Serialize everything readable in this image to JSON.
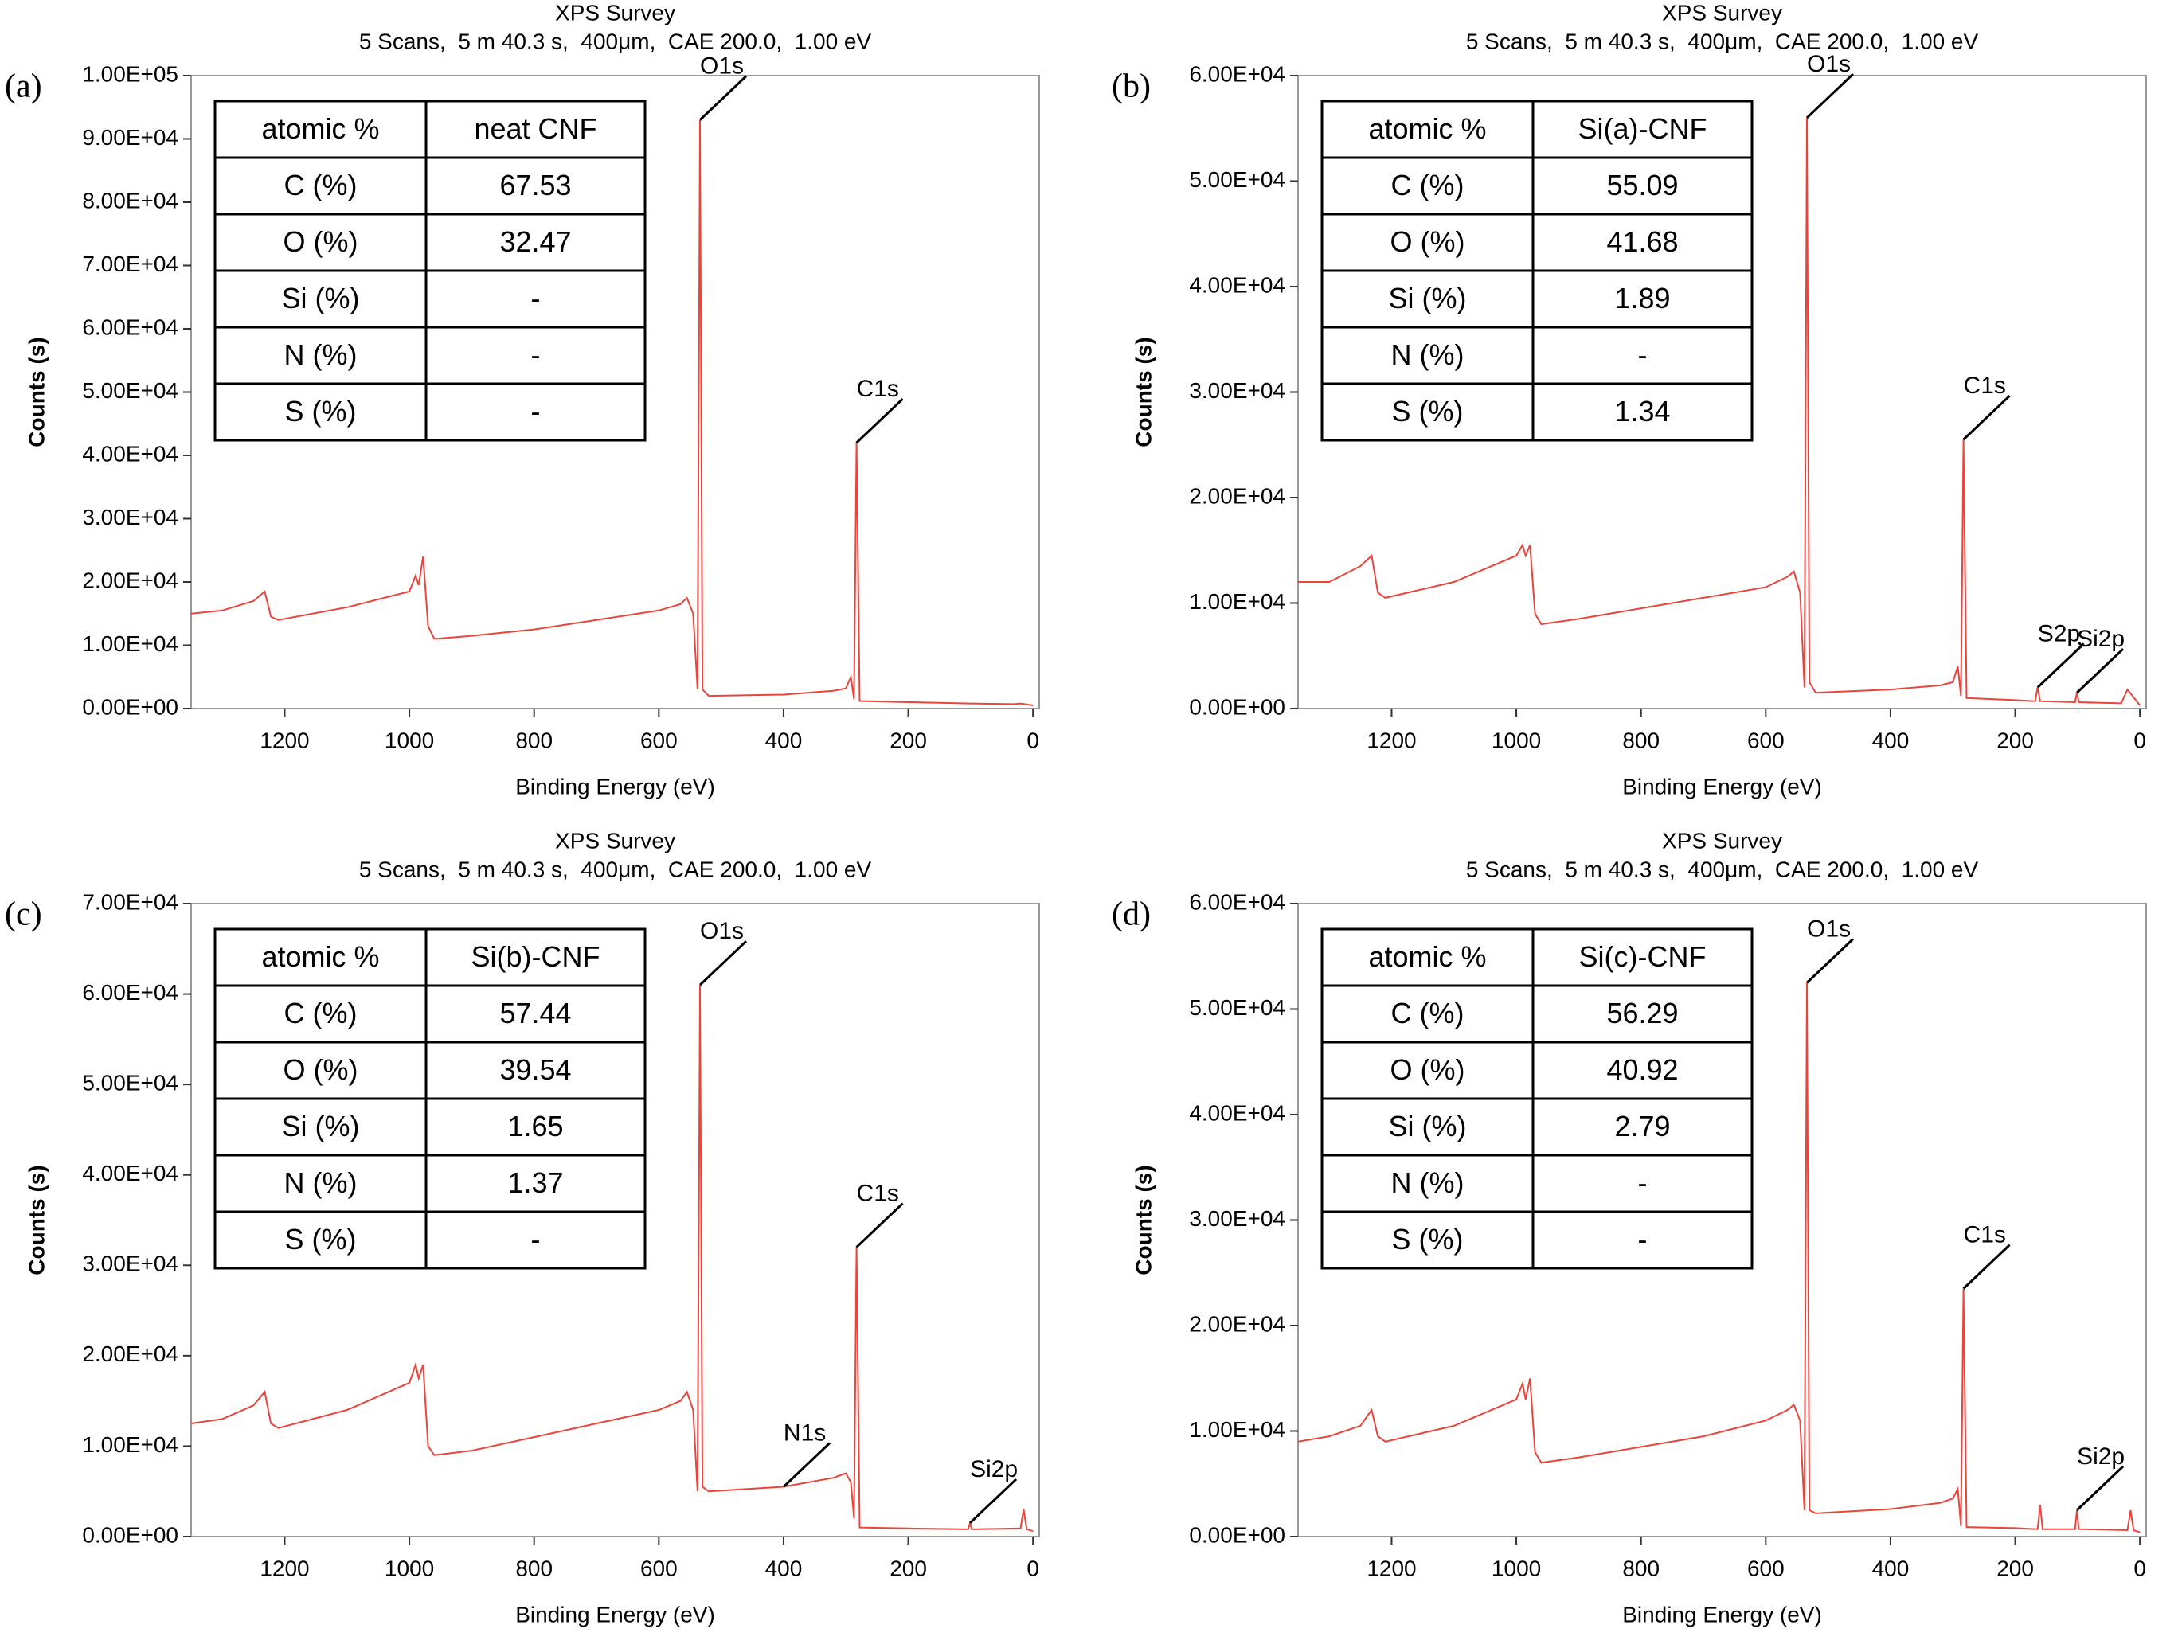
{
  "chart_data": [
    {
      "type": "line",
      "panel": "(a)",
      "title": "XPS Survey",
      "subtitle": "5 Scans,  5 m 40.3 s,  400μm,  CAE 200.0,  1.00 eV",
      "x_label": "Binding Energy (eV)",
      "y_label": "Counts (s)",
      "xlim": [
        1350,
        -10
      ],
      "ylim": [
        0,
        100000
      ],
      "xticks": [
        1200,
        1000,
        800,
        600,
        400,
        200,
        0
      ],
      "yticks": [
        {
          "value": 0,
          "label": "0.00E+00"
        },
        {
          "value": 10000,
          "label": "1.00E+04"
        },
        {
          "value": 20000,
          "label": "2.00E+04"
        },
        {
          "value": 30000,
          "label": "3.00E+04"
        },
        {
          "value": 40000,
          "label": "4.00E+04"
        },
        {
          "value": 50000,
          "label": "5.00E+04"
        },
        {
          "value": 60000,
          "label": "6.00E+04"
        },
        {
          "value": 70000,
          "label": "7.00E+04"
        },
        {
          "value": 80000,
          "label": "8.00E+04"
        },
        {
          "value": 90000,
          "label": "9.00E+04"
        },
        {
          "value": 100000,
          "label": "1.00E+05"
        }
      ],
      "x": [
        1350,
        1300,
        1250,
        1232,
        1222,
        1210,
        1100,
        1000,
        990,
        985,
        978,
        970,
        960,
        900,
        800,
        700,
        600,
        565,
        555,
        545,
        538,
        534,
        530,
        520,
        400,
        320,
        300,
        292,
        287,
        283,
        278,
        200,
        100,
        30,
        20,
        0
      ],
      "series": [
        {
          "color": "#e8453c",
          "values": [
            15000,
            15500,
            17000,
            18500,
            14500,
            14000,
            16000,
            18500,
            21000,
            19500,
            24000,
            13000,
            11000,
            11500,
            12500,
            14000,
            15500,
            16500,
            17500,
            15000,
            3000,
            93000,
            3000,
            2000,
            2200,
            2800,
            3200,
            5000,
            1500,
            42000,
            1200,
            1000,
            800,
            700,
            800,
            500
          ]
        }
      ],
      "annotations": [
        {
          "text": "O1s",
          "x": 534,
          "y": 93000
        },
        {
          "text": "C1s",
          "x": 283,
          "y": 42000
        }
      ],
      "table": {
        "header": [
          "atomic %",
          "neat CNF"
        ],
        "rows": [
          [
            "C (%)",
            "67.53"
          ],
          [
            "O (%)",
            "32.47"
          ],
          [
            "Si (%)",
            "-"
          ],
          [
            "N (%)",
            "-"
          ],
          [
            "S (%)",
            "-"
          ]
        ]
      }
    },
    {
      "type": "line",
      "panel": "(b)",
      "title": "XPS Survey",
      "subtitle": "5 Scans,  5 m 40.3 s,  400μm,  CAE 200.0,  1.00 eV",
      "x_label": "Binding Energy (eV)",
      "y_label": "Counts (s)",
      "xlim": [
        1350,
        -10
      ],
      "ylim": [
        0,
        60000
      ],
      "xticks": [
        1200,
        1000,
        800,
        600,
        400,
        200,
        0
      ],
      "yticks": [
        {
          "value": 0,
          "label": "0.00E+00"
        },
        {
          "value": 10000,
          "label": "1.00E+04"
        },
        {
          "value": 20000,
          "label": "2.00E+04"
        },
        {
          "value": 30000,
          "label": "3.00E+04"
        },
        {
          "value": 40000,
          "label": "4.00E+04"
        },
        {
          "value": 50000,
          "label": "5.00E+04"
        },
        {
          "value": 60000,
          "label": "6.00E+04"
        }
      ],
      "x": [
        1350,
        1300,
        1250,
        1232,
        1222,
        1210,
        1100,
        1000,
        990,
        985,
        978,
        970,
        960,
        900,
        800,
        700,
        600,
        565,
        555,
        545,
        538,
        534,
        530,
        520,
        400,
        320,
        300,
        292,
        287,
        283,
        278,
        200,
        168,
        164,
        160,
        104,
        101,
        98,
        30,
        20,
        0
      ],
      "series": [
        {
          "color": "#e8453c",
          "values": [
            12000,
            12000,
            13500,
            14500,
            11000,
            10500,
            12000,
            14500,
            15500,
            14500,
            15500,
            9000,
            8000,
            8500,
            9500,
            10500,
            11500,
            12500,
            13000,
            11000,
            2000,
            56000,
            2500,
            1500,
            1800,
            2200,
            2500,
            4000,
            1200,
            25500,
            1000,
            800,
            700,
            2000,
            700,
            600,
            1500,
            600,
            500,
            1800,
            300
          ]
        }
      ],
      "annotations": [
        {
          "text": "O1s",
          "x": 534,
          "y": 56000
        },
        {
          "text": "C1s",
          "x": 283,
          "y": 25500
        },
        {
          "text": "S2p",
          "x": 164,
          "y": 2000
        },
        {
          "text": "Si2p",
          "x": 101,
          "y": 1500
        }
      ],
      "table": {
        "header": [
          "atomic %",
          "Si(a)-CNF"
        ],
        "rows": [
          [
            "C (%)",
            "55.09"
          ],
          [
            "O (%)",
            "41.68"
          ],
          [
            "Si (%)",
            "1.89"
          ],
          [
            "N (%)",
            "-"
          ],
          [
            "S (%)",
            "1.34"
          ]
        ]
      }
    },
    {
      "type": "line",
      "panel": "(c)",
      "title": "XPS Survey",
      "subtitle": "5 Scans,  5 m 40.3 s,  400μm,  CAE 200.0,  1.00 eV",
      "x_label": "Binding Energy (eV)",
      "y_label": "Counts (s)",
      "xlim": [
        1350,
        -10
      ],
      "ylim": [
        0,
        70000
      ],
      "xticks": [
        1200,
        1000,
        800,
        600,
        400,
        200,
        0
      ],
      "yticks": [
        {
          "value": 0,
          "label": "0.00E+00"
        },
        {
          "value": 10000,
          "label": "1.00E+04"
        },
        {
          "value": 20000,
          "label": "2.00E+04"
        },
        {
          "value": 30000,
          "label": "3.00E+04"
        },
        {
          "value": 40000,
          "label": "4.00E+04"
        },
        {
          "value": 50000,
          "label": "5.00E+04"
        },
        {
          "value": 60000,
          "label": "6.00E+04"
        },
        {
          "value": 70000,
          "label": "7.00E+04"
        }
      ],
      "x": [
        1350,
        1300,
        1250,
        1232,
        1222,
        1210,
        1100,
        1000,
        990,
        985,
        978,
        970,
        960,
        900,
        800,
        700,
        600,
        565,
        555,
        545,
        538,
        534,
        530,
        520,
        400,
        320,
        300,
        292,
        287,
        283,
        278,
        200,
        104,
        101,
        98,
        20,
        15,
        10,
        0
      ],
      "series": [
        {
          "color": "#e8453c",
          "values": [
            12500,
            13000,
            14500,
            16000,
            12500,
            12000,
            14000,
            17000,
            19000,
            17500,
            19000,
            10000,
            9000,
            9500,
            11000,
            12500,
            14000,
            15000,
            16000,
            14000,
            5000,
            61000,
            5500,
            5000,
            5500,
            6500,
            7000,
            6000,
            2000,
            32000,
            1000,
            900,
            800,
            1500,
            800,
            900,
            3000,
            800,
            600
          ]
        }
      ],
      "annotations": [
        {
          "text": "O1s",
          "x": 534,
          "y": 61000
        },
        {
          "text": "C1s",
          "x": 283,
          "y": 32000
        },
        {
          "text": "N1s",
          "x": 400,
          "y": 5500
        },
        {
          "text": "Si2p",
          "x": 101,
          "y": 1500
        }
      ],
      "table": {
        "header": [
          "atomic %",
          "Si(b)-CNF"
        ],
        "rows": [
          [
            "C (%)",
            "57.44"
          ],
          [
            "O (%)",
            "39.54"
          ],
          [
            "Si (%)",
            "1.65"
          ],
          [
            "N (%)",
            "1.37"
          ],
          [
            "S (%)",
            "-"
          ]
        ]
      }
    },
    {
      "type": "line",
      "panel": "(d)",
      "title": "XPS Survey",
      "subtitle": "5 Scans,  5 m 40.3 s,  400μm,  CAE 200.0,  1.00 eV",
      "x_label": "Binding Energy (eV)",
      "y_label": "Counts (s)",
      "xlim": [
        1350,
        -10
      ],
      "ylim": [
        0,
        60000
      ],
      "xticks": [
        1200,
        1000,
        800,
        600,
        400,
        200,
        0
      ],
      "yticks": [
        {
          "value": 0,
          "label": "0.00E+00"
        },
        {
          "value": 10000,
          "label": "1.00E+04"
        },
        {
          "value": 20000,
          "label": "2.00E+04"
        },
        {
          "value": 30000,
          "label": "3.00E+04"
        },
        {
          "value": 40000,
          "label": "4.00E+04"
        },
        {
          "value": 50000,
          "label": "5.00E+04"
        },
        {
          "value": 60000,
          "label": "6.00E+04"
        }
      ],
      "x": [
        1350,
        1300,
        1250,
        1232,
        1222,
        1210,
        1100,
        1000,
        990,
        985,
        978,
        970,
        960,
        900,
        800,
        700,
        600,
        565,
        555,
        545,
        538,
        534,
        530,
        520,
        400,
        320,
        300,
        292,
        287,
        283,
        278,
        200,
        164,
        160,
        156,
        104,
        101,
        98,
        20,
        15,
        10,
        0
      ],
      "series": [
        {
          "color": "#e8453c",
          "values": [
            9000,
            9500,
            10500,
            12000,
            9500,
            9000,
            10500,
            13000,
            14500,
            13000,
            15000,
            8000,
            7000,
            7500,
            8500,
            9500,
            11000,
            12000,
            12500,
            11000,
            2500,
            52500,
            2500,
            2200,
            2600,
            3200,
            3600,
            4500,
            1000,
            23500,
            900,
            800,
            700,
            3000,
            700,
            700,
            2500,
            700,
            600,
            2500,
            600,
            400
          ]
        }
      ],
      "annotations": [
        {
          "text": "O1s",
          "x": 534,
          "y": 52500
        },
        {
          "text": "C1s",
          "x": 283,
          "y": 23500
        },
        {
          "text": "Si2p",
          "x": 101,
          "y": 2500
        }
      ],
      "table": {
        "header": [
          "atomic %",
          "Si(c)-CNF"
        ],
        "rows": [
          [
            "C (%)",
            "56.29"
          ],
          [
            "O (%)",
            "40.92"
          ],
          [
            "Si (%)",
            "2.79"
          ],
          [
            "N (%)",
            "-"
          ],
          [
            "S (%)",
            "-"
          ]
        ]
      }
    }
  ]
}
